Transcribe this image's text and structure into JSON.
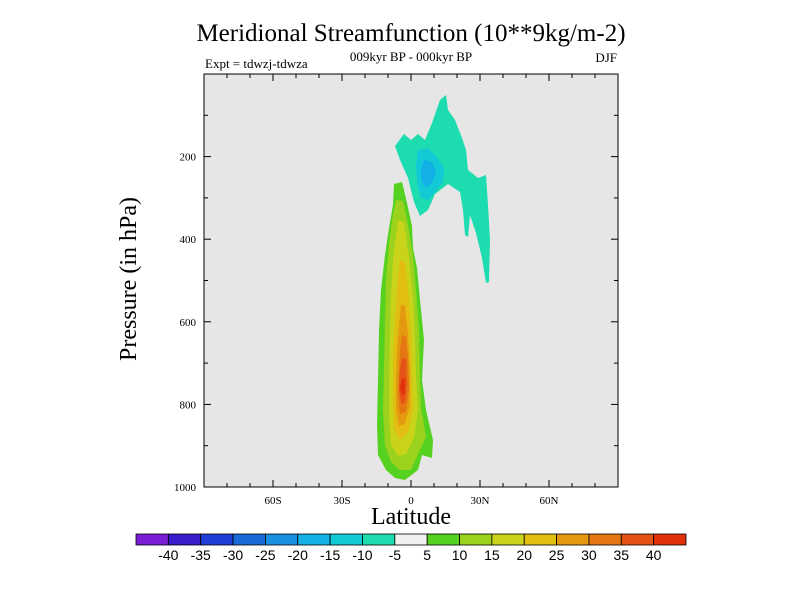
{
  "chart_data": {
    "type": "contour",
    "title": "Meridional Streamfunction (10**9kg/m-2)",
    "subtitle": "009kyr BP - 000kyr BP",
    "left_label": "Expt = tdwzj-tdwza",
    "right_label": "DJF",
    "xlabel": "Latitude",
    "ylabel": "Pressure (in hPa)",
    "x_ticks": [
      "60S",
      "30S",
      "0",
      "30N",
      "60N"
    ],
    "x_tick_values": [
      -60,
      -30,
      0,
      30,
      60
    ],
    "xlim": [
      -90,
      90
    ],
    "y_ticks": [
      "200",
      "400",
      "600",
      "800",
      "1000"
    ],
    "y_tick_values": [
      200,
      400,
      600,
      800,
      1000
    ],
    "ylim": [
      1000,
      0
    ],
    "colorbar": {
      "tick_labels": [
        "-40",
        "-35",
        "-30",
        "-25",
        "-20",
        "-15",
        "-10",
        "-5",
        "5",
        "10",
        "15",
        "20",
        "25",
        "30",
        "35",
        "40"
      ],
      "colors": [
        "#7a1fd6",
        "#3a1ec9",
        "#1f3fd6",
        "#1b6ad9",
        "#1b8fe0",
        "#12b0e6",
        "#12c9d6",
        "#1ddcb0",
        "#f0f0f0",
        "#55d11f",
        "#9ad21d",
        "#c8d31a",
        "#e2be10",
        "#e39a10",
        "#e47712",
        "#e45315",
        "#e2300c"
      ]
    },
    "background_color": "#e6e6e6",
    "features": [
      {
        "sign": "positive",
        "lat_center": -2,
        "pressure_range": [
          280,
          985
        ],
        "peak_value": 40,
        "peak_pressure": 770
      },
      {
        "sign": "negative",
        "lat_center": 8,
        "pressure_range": [
          70,
          310
        ],
        "min_value": -10
      },
      {
        "sign": "negative",
        "lat_center": 18,
        "pressure_range": [
          250,
          310
        ],
        "min_value": -5
      }
    ]
  }
}
